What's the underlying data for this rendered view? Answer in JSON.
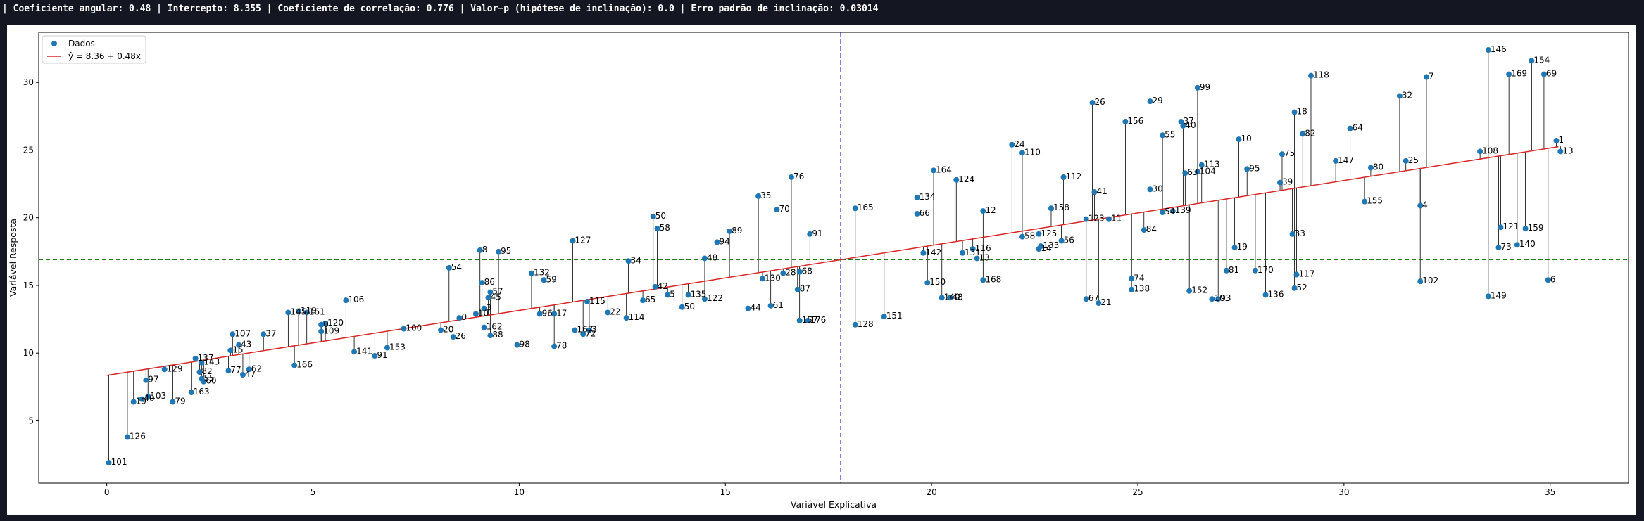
{
  "header": {
    "stats_line": "| Coeficiente angular: 0.48 | Intercepto: 8.355 | Coeficiente de correlação: 0.776 | Valor−p (hipótese de inclinação): 0.0 | Erro padrão de inclinação: 0.03014"
  },
  "chart_data": {
    "type": "scatter",
    "xlabel": "Variável Explicativa",
    "ylabel": "Variável Resposta",
    "xlim": [
      -1.65,
      36.9
    ],
    "ylim": [
      0.4,
      33.7
    ],
    "xticks": [
      0,
      5,
      10,
      15,
      20,
      25,
      30,
      35
    ],
    "yticks": [
      5,
      10,
      15,
      20,
      25,
      30
    ],
    "grid": false,
    "legend_position": "upper-left",
    "legend": [
      "Dados",
      "ŷ = 8.36 + 0.48x"
    ],
    "regression": {
      "intercept": 8.355,
      "slope": 0.48,
      "x_range": [
        0,
        35.2
      ]
    },
    "mean_x": 17.8,
    "mean_y": 16.9,
    "colors": {
      "points": "#1f77b4",
      "regression_line": "#d62728",
      "mean_x_line": "#0000cc",
      "mean_y_line": "#1a7f1a",
      "residual_lines": "#000000"
    },
    "points": [
      {
        "label": "101",
        "x": 0.05,
        "y": 1.9
      },
      {
        "label": "126",
        "x": 0.5,
        "y": 3.8
      },
      {
        "label": "19",
        "x": 0.65,
        "y": 6.4
      },
      {
        "label": "40",
        "x": 0.85,
        "y": 6.6
      },
      {
        "label": "97",
        "x": 0.95,
        "y": 8.0
      },
      {
        "label": "103",
        "x": 1.0,
        "y": 6.8
      },
      {
        "label": "129",
        "x": 1.4,
        "y": 8.8
      },
      {
        "label": "79",
        "x": 1.6,
        "y": 6.4
      },
      {
        "label": "163",
        "x": 2.05,
        "y": 7.1
      },
      {
        "label": "137",
        "x": 2.15,
        "y": 9.6
      },
      {
        "label": "143",
        "x": 2.3,
        "y": 9.3
      },
      {
        "label": "82",
        "x": 2.25,
        "y": 8.6
      },
      {
        "label": "55",
        "x": 2.3,
        "y": 8.1
      },
      {
        "label": "60",
        "x": 2.35,
        "y": 7.9
      },
      {
        "label": "77",
        "x": 2.95,
        "y": 8.7
      },
      {
        "label": "107",
        "x": 3.05,
        "y": 11.4
      },
      {
        "label": "43",
        "x": 3.2,
        "y": 10.6
      },
      {
        "label": "15",
        "x": 3.0,
        "y": 10.2
      },
      {
        "label": "47",
        "x": 3.3,
        "y": 8.4
      },
      {
        "label": "62",
        "x": 3.45,
        "y": 8.8
      },
      {
        "label": "37",
        "x": 3.8,
        "y": 11.4
      },
      {
        "label": "145",
        "x": 4.4,
        "y": 13.0
      },
      {
        "label": "166",
        "x": 4.55,
        "y": 9.1
      },
      {
        "label": "119",
        "x": 4.65,
        "y": 13.1
      },
      {
        "label": "161",
        "x": 4.85,
        "y": 13.0
      },
      {
        "label": "0",
        "x": 5.2,
        "y": 12.1
      },
      {
        "label": "120",
        "x": 5.3,
        "y": 12.2
      },
      {
        "label": "109",
        "x": 5.2,
        "y": 11.6
      },
      {
        "label": "106",
        "x": 5.8,
        "y": 13.9
      },
      {
        "label": "141",
        "x": 6.0,
        "y": 10.1
      },
      {
        "label": "91",
        "x": 6.5,
        "y": 9.8
      },
      {
        "label": "153",
        "x": 6.8,
        "y": 10.4
      },
      {
        "label": "100",
        "x": 7.2,
        "y": 11.8
      },
      {
        "label": "20",
        "x": 8.1,
        "y": 11.7
      },
      {
        "label": "54",
        "x": 8.3,
        "y": 16.3
      },
      {
        "label": "26",
        "x": 8.4,
        "y": 11.2
      },
      {
        "label": "0",
        "x": 8.55,
        "y": 12.6
      },
      {
        "label": "8",
        "x": 9.05,
        "y": 17.6
      },
      {
        "label": "10",
        "x": 8.95,
        "y": 12.9
      },
      {
        "label": "86",
        "x": 9.1,
        "y": 15.2
      },
      {
        "label": "57",
        "x": 9.3,
        "y": 14.5
      },
      {
        "label": "45",
        "x": 9.25,
        "y": 14.1
      },
      {
        "label": "3",
        "x": 9.15,
        "y": 13.3
      },
      {
        "label": "162",
        "x": 9.15,
        "y": 11.9
      },
      {
        "label": "88",
        "x": 9.3,
        "y": 11.3
      },
      {
        "label": "95",
        "x": 9.5,
        "y": 17.5
      },
      {
        "label": "98",
        "x": 9.95,
        "y": 10.6
      },
      {
        "label": "132",
        "x": 10.3,
        "y": 15.9
      },
      {
        "label": "59",
        "x": 10.6,
        "y": 15.4
      },
      {
        "label": "96",
        "x": 10.5,
        "y": 12.9
      },
      {
        "label": "17",
        "x": 10.85,
        "y": 12.9
      },
      {
        "label": "78",
        "x": 10.85,
        "y": 10.5
      },
      {
        "label": "127",
        "x": 11.3,
        "y": 18.3
      },
      {
        "label": "167",
        "x": 11.35,
        "y": 11.7
      },
      {
        "label": "115",
        "x": 11.65,
        "y": 13.8
      },
      {
        "label": "3",
        "x": 11.7,
        "y": 11.7
      },
      {
        "label": "72",
        "x": 11.55,
        "y": 11.4
      },
      {
        "label": "22",
        "x": 12.15,
        "y": 13.0
      },
      {
        "label": "34",
        "x": 12.65,
        "y": 16.8
      },
      {
        "label": "114",
        "x": 12.6,
        "y": 12.6
      },
      {
        "label": "65",
        "x": 13.0,
        "y": 13.9
      },
      {
        "label": "50",
        "x": 13.25,
        "y": 20.1
      },
      {
        "label": "58",
        "x": 13.35,
        "y": 19.2
      },
      {
        "label": "42",
        "x": 13.3,
        "y": 14.9
      },
      {
        "label": "5",
        "x": 13.6,
        "y": 14.3
      },
      {
        "label": "50",
        "x": 13.95,
        "y": 13.4
      },
      {
        "label": "135",
        "x": 14.1,
        "y": 14.3
      },
      {
        "label": "48",
        "x": 14.5,
        "y": 17.0
      },
      {
        "label": "122",
        "x": 14.5,
        "y": 14.0
      },
      {
        "label": "94",
        "x": 14.8,
        "y": 18.2
      },
      {
        "label": "89",
        "x": 15.1,
        "y": 19.0
      },
      {
        "label": "44",
        "x": 15.55,
        "y": 13.3
      },
      {
        "label": "35",
        "x": 15.8,
        "y": 21.6
      },
      {
        "label": "130",
        "x": 15.9,
        "y": 15.5
      },
      {
        "label": "61",
        "x": 16.1,
        "y": 13.5
      },
      {
        "label": "70",
        "x": 16.25,
        "y": 20.6
      },
      {
        "label": "28",
        "x": 16.4,
        "y": 15.9
      },
      {
        "label": "76",
        "x": 16.6,
        "y": 23.0
      },
      {
        "label": "87",
        "x": 16.75,
        "y": 14.7
      },
      {
        "label": "68",
        "x": 16.8,
        "y": 16.0
      },
      {
        "label": "157",
        "x": 16.8,
        "y": 12.4
      },
      {
        "label": "176",
        "x": 17.0,
        "y": 12.4
      },
      {
        "label": "91",
        "x": 17.05,
        "y": 18.8
      },
      {
        "label": "165",
        "x": 18.15,
        "y": 20.7
      },
      {
        "label": "128",
        "x": 18.15,
        "y": 12.1
      },
      {
        "label": "151",
        "x": 18.85,
        "y": 12.7
      },
      {
        "label": "134",
        "x": 19.65,
        "y": 21.5
      },
      {
        "label": "66",
        "x": 19.65,
        "y": 20.3
      },
      {
        "label": "142",
        "x": 19.8,
        "y": 17.4
      },
      {
        "label": "150",
        "x": 19.9,
        "y": 15.2
      },
      {
        "label": "164",
        "x": 20.05,
        "y": 23.5
      },
      {
        "label": "140",
        "x": 20.25,
        "y": 14.1
      },
      {
        "label": "48",
        "x": 20.45,
        "y": 14.1
      },
      {
        "label": "124",
        "x": 20.6,
        "y": 22.8
      },
      {
        "label": "131",
        "x": 20.75,
        "y": 17.4
      },
      {
        "label": "116",
        "x": 21.0,
        "y": 17.7
      },
      {
        "label": "13",
        "x": 21.1,
        "y": 17.0
      },
      {
        "label": "12",
        "x": 21.25,
        "y": 20.5
      },
      {
        "label": "168",
        "x": 21.25,
        "y": 15.4
      },
      {
        "label": "24",
        "x": 21.95,
        "y": 25.4
      },
      {
        "label": "110",
        "x": 22.2,
        "y": 24.8
      },
      {
        "label": "58",
        "x": 22.2,
        "y": 18.6
      },
      {
        "label": "125",
        "x": 22.6,
        "y": 18.8
      },
      {
        "label": "133",
        "x": 22.65,
        "y": 17.9
      },
      {
        "label": "14",
        "x": 22.6,
        "y": 17.7
      },
      {
        "label": "158",
        "x": 22.9,
        "y": 20.7
      },
      {
        "label": "112",
        "x": 23.2,
        "y": 23.0
      },
      {
        "label": "56",
        "x": 23.15,
        "y": 18.3
      },
      {
        "label": "123",
        "x": 23.75,
        "y": 19.9
      },
      {
        "label": "67",
        "x": 23.75,
        "y": 14.0
      },
      {
        "label": "41",
        "x": 23.95,
        "y": 21.9
      },
      {
        "label": "26",
        "x": 23.9,
        "y": 28.5
      },
      {
        "label": "21",
        "x": 24.05,
        "y": 13.7
      },
      {
        "label": "11",
        "x": 24.3,
        "y": 19.9
      },
      {
        "label": "156",
        "x": 24.7,
        "y": 27.1
      },
      {
        "label": "74",
        "x": 24.85,
        "y": 15.5
      },
      {
        "label": "138",
        "x": 24.85,
        "y": 14.7
      },
      {
        "label": "84",
        "x": 25.15,
        "y": 19.1
      },
      {
        "label": "30",
        "x": 25.3,
        "y": 22.1
      },
      {
        "label": "29",
        "x": 25.3,
        "y": 28.6
      },
      {
        "label": "55",
        "x": 25.6,
        "y": 26.1
      },
      {
        "label": "54",
        "x": 25.6,
        "y": 20.4
      },
      {
        "label": "139",
        "x": 25.85,
        "y": 20.5
      },
      {
        "label": "37",
        "x": 26.05,
        "y": 27.1
      },
      {
        "label": "40",
        "x": 26.1,
        "y": 26.8
      },
      {
        "label": "63",
        "x": 26.15,
        "y": 23.3
      },
      {
        "label": "152",
        "x": 26.25,
        "y": 14.6
      },
      {
        "label": "104",
        "x": 26.45,
        "y": 23.4
      },
      {
        "label": "113",
        "x": 26.55,
        "y": 23.9
      },
      {
        "label": "99",
        "x": 26.45,
        "y": 29.6
      },
      {
        "label": "105",
        "x": 26.8,
        "y": 14.0
      },
      {
        "label": "93",
        "x": 26.95,
        "y": 14.0
      },
      {
        "label": "81",
        "x": 27.15,
        "y": 16.1
      },
      {
        "label": "19",
        "x": 27.35,
        "y": 17.8
      },
      {
        "label": "10",
        "x": 27.45,
        "y": 25.8
      },
      {
        "label": "95",
        "x": 27.65,
        "y": 23.6
      },
      {
        "label": "170",
        "x": 27.85,
        "y": 16.1
      },
      {
        "label": "136",
        "x": 28.1,
        "y": 14.3
      },
      {
        "label": "39",
        "x": 28.45,
        "y": 22.6
      },
      {
        "label": "75",
        "x": 28.5,
        "y": 24.7
      },
      {
        "label": "33",
        "x": 28.75,
        "y": 18.8
      },
      {
        "label": "18",
        "x": 28.8,
        "y": 27.8
      },
      {
        "label": "117",
        "x": 28.85,
        "y": 15.8
      },
      {
        "label": "52",
        "x": 28.8,
        "y": 14.8
      },
      {
        "label": "82",
        "x": 29.0,
        "y": 26.2
      },
      {
        "label": "118",
        "x": 29.2,
        "y": 30.5
      },
      {
        "label": "147",
        "x": 29.8,
        "y": 24.2
      },
      {
        "label": "64",
        "x": 30.15,
        "y": 26.6
      },
      {
        "label": "155",
        "x": 30.5,
        "y": 21.2
      },
      {
        "label": "80",
        "x": 30.65,
        "y": 23.7
      },
      {
        "label": "32",
        "x": 31.35,
        "y": 29.0
      },
      {
        "label": "25",
        "x": 31.5,
        "y": 24.2
      },
      {
        "label": "4",
        "x": 31.85,
        "y": 20.9
      },
      {
        "label": "102",
        "x": 31.85,
        "y": 15.3
      },
      {
        "label": "7",
        "x": 32.0,
        "y": 30.4
      },
      {
        "label": "108",
        "x": 33.3,
        "y": 24.9
      },
      {
        "label": "149",
        "x": 33.5,
        "y": 14.2
      },
      {
        "label": "146",
        "x": 33.5,
        "y": 32.4
      },
      {
        "label": "73",
        "x": 33.75,
        "y": 17.8
      },
      {
        "label": "121",
        "x": 33.8,
        "y": 19.3
      },
      {
        "label": "140",
        "x": 34.2,
        "y": 18.0
      },
      {
        "label": "159",
        "x": 34.4,
        "y": 19.2
      },
      {
        "label": "169",
        "x": 34.0,
        "y": 30.6
      },
      {
        "label": "154",
        "x": 34.55,
        "y": 31.6
      },
      {
        "label": "69",
        "x": 34.85,
        "y": 30.6
      },
      {
        "label": "6",
        "x": 34.95,
        "y": 15.4
      },
      {
        "label": "1",
        "x": 35.15,
        "y": 25.7
      },
      {
        "label": "13",
        "x": 35.25,
        "y": 24.9
      }
    ]
  }
}
